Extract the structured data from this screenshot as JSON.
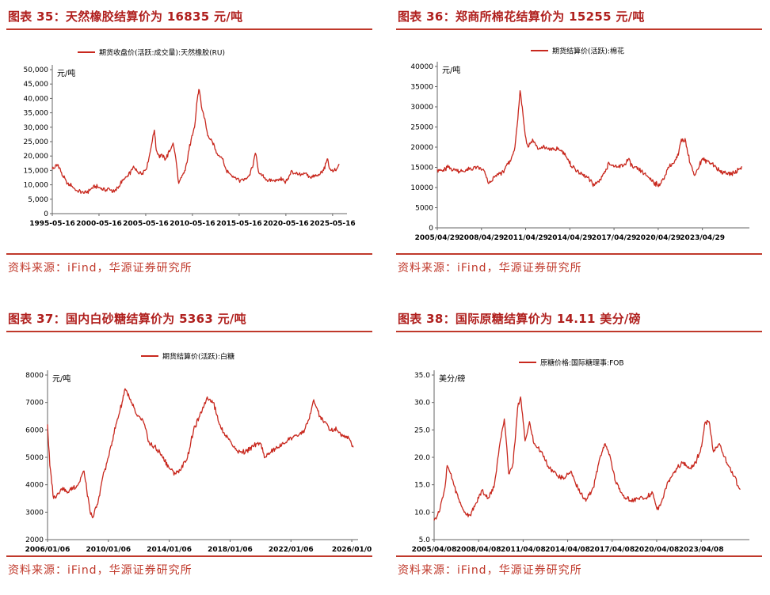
{
  "source_text": "资料来源：iFind，华源证券研究所",
  "chart_data": [
    {
      "type": "line",
      "title": "图表 35：天然橡胶结算价为 16835 元/吨",
      "unit": "元/吨",
      "legend": "期货收盘价(活跃:成交量):天然橡胶(RU)",
      "color": "#c8281e",
      "xlim": [
        1995.37,
        2026.4
      ],
      "ylim": [
        0,
        50000
      ],
      "yticks": [
        0,
        5000,
        10000,
        15000,
        20000,
        25000,
        30000,
        35000,
        40000,
        45000,
        50000
      ],
      "ytick_labels": [
        "0",
        "5,000",
        "10,000",
        "15,000",
        "20,000",
        "25,000",
        "30,000",
        "35,000",
        "40,000",
        "45,000",
        "50,000"
      ],
      "xticks": [
        1995.37,
        2000.37,
        2005.37,
        2010.37,
        2015.37,
        2020.37,
        2025.37
      ],
      "xtick_labels": [
        "1995-05-16",
        "2000-05-16",
        "2005-05-16",
        "2010-05-16",
        "2015-05-16",
        "2020-05-16",
        "2025-05-16"
      ],
      "x": [
        1995.37,
        1996.0,
        1996.5,
        1997.0,
        1997.5,
        1998.0,
        1998.5,
        1999.0,
        1999.5,
        2000.0,
        2000.5,
        2001.0,
        2001.5,
        2002.0,
        2002.5,
        2003.0,
        2003.5,
        2004.0,
        2004.5,
        2005.0,
        2005.5,
        2006.0,
        2006.3,
        2006.5,
        2006.8,
        2007.0,
        2007.5,
        2008.0,
        2008.3,
        2008.6,
        2008.9,
        2009.2,
        2009.6,
        2010.0,
        2010.3,
        2010.6,
        2010.9,
        2011.1,
        2011.4,
        2011.7,
        2012.0,
        2012.5,
        2013.0,
        2013.5,
        2014.0,
        2014.5,
        2015.0,
        2015.5,
        2016.0,
        2016.4,
        2016.8,
        2017.1,
        2017.5,
        2018.0,
        2018.5,
        2019.0,
        2019.5,
        2020.0,
        2020.3,
        2020.7,
        2021.0,
        2021.3,
        2021.7,
        2022.0,
        2022.5,
        2023.0,
        2023.5,
        2024.0,
        2024.4,
        2024.8,
        2025.0,
        2025.4,
        2025.8,
        2026.1
      ],
      "y": [
        15500,
        17000,
        13000,
        10500,
        9500,
        8000,
        7500,
        7200,
        8500,
        9500,
        9000,
        8000,
        8500,
        7500,
        9500,
        12000,
        13000,
        16000,
        14500,
        14000,
        16000,
        24000,
        29000,
        22000,
        20000,
        20500,
        19000,
        22000,
        24500,
        19000,
        10500,
        12500,
        15000,
        22000,
        27000,
        30000,
        40000,
        43000,
        36000,
        33000,
        27000,
        25000,
        21000,
        19500,
        15000,
        13500,
        12500,
        11500,
        12000,
        13000,
        16000,
        21000,
        14000,
        12500,
        11500,
        11500,
        11800,
        12000,
        10500,
        13000,
        15000,
        14000,
        13500,
        13500,
        14000,
        12500,
        13000,
        13500,
        15000,
        19000,
        16000,
        14500,
        15500,
        17000
      ]
    },
    {
      "type": "line",
      "title": "图表 36：郑商所棉花结算价为 15255 元/吨",
      "unit": "元/吨",
      "legend": "期货结算价(活跃):棉花",
      "color": "#c8281e",
      "xlim": [
        2005.33,
        2026.2
      ],
      "ylim": [
        0,
        40000
      ],
      "yticks": [
        0,
        5000,
        10000,
        15000,
        20000,
        25000,
        30000,
        35000,
        40000
      ],
      "ytick_labels": [
        "0",
        "5000",
        "10000",
        "15000",
        "20000",
        "25000",
        "30000",
        "35000",
        "40000"
      ],
      "xticks": [
        2005.33,
        2008.33,
        2011.33,
        2014.33,
        2017.33,
        2020.33,
        2023.33
      ],
      "xtick_labels": [
        "2005/04/29",
        "2008/04/29",
        "2011/04/29",
        "2014/04/29",
        "2017/04/29",
        "2020/04/29",
        "2023/04/29"
      ],
      "x": [
        2005.33,
        2005.7,
        2006.0,
        2006.5,
        2007.0,
        2007.5,
        2008.0,
        2008.5,
        2008.8,
        2009.0,
        2009.3,
        2009.8,
        2010.3,
        2010.6,
        2010.8,
        2010.95,
        2011.1,
        2011.3,
        2011.5,
        2011.8,
        2012.2,
        2012.6,
        2013.0,
        2013.5,
        2014.0,
        2014.3,
        2014.7,
        2015.0,
        2015.5,
        2016.0,
        2016.4,
        2016.7,
        2017.0,
        2017.5,
        2018.0,
        2018.3,
        2018.6,
        2019.0,
        2019.5,
        2020.0,
        2020.3,
        2020.7,
        2021.0,
        2021.4,
        2021.7,
        2021.9,
        2022.2,
        2022.5,
        2022.8,
        2023.0,
        2023.3,
        2023.7,
        2024.0,
        2024.5,
        2025.0,
        2025.5,
        2026.0
      ],
      "y": [
        14500,
        14000,
        15000,
        14500,
        14000,
        14500,
        15000,
        14200,
        11000,
        11500,
        13000,
        14000,
        16500,
        20000,
        27000,
        34000,
        30000,
        23000,
        20000,
        22000,
        19500,
        20000,
        19500,
        19500,
        18500,
        16000,
        14500,
        13500,
        12500,
        10500,
        12000,
        14000,
        16000,
        15000,
        15500,
        17000,
        15000,
        14500,
        13000,
        11500,
        10500,
        12000,
        15000,
        16000,
        18000,
        22000,
        21500,
        16000,
        13000,
        14500,
        17000,
        16500,
        16000,
        14000,
        13500,
        13500,
        15255
      ]
    },
    {
      "type": "line",
      "title": "图表 37：国内白砂糖结算价为 5363 元/吨",
      "unit": "元/吨",
      "legend": "期货结算价(活跃):白糖",
      "color": "#c8281e",
      "xlim": [
        2006.0,
        2026.1
      ],
      "ylim": [
        2000,
        8000
      ],
      "yticks": [
        2000,
        3000,
        4000,
        5000,
        6000,
        7000,
        8000
      ],
      "ytick_labels": [
        "2000",
        "3000",
        "4000",
        "5000",
        "6000",
        "7000",
        "8000"
      ],
      "xticks": [
        2006.0,
        2010.0,
        2014.0,
        2018.0,
        2022.0,
        2026.0
      ],
      "xtick_labels": [
        "2006/01/06",
        "2010/01/06",
        "2014/01/06",
        "2018/01/06",
        "2022/01/06",
        "2026/01/0"
      ],
      "x": [
        2006.0,
        2006.15,
        2006.4,
        2006.7,
        2007.0,
        2007.3,
        2007.7,
        2008.0,
        2008.4,
        2008.8,
        2008.95,
        2009.3,
        2009.6,
        2010.0,
        2010.5,
        2010.9,
        2011.1,
        2011.5,
        2011.9,
        2012.3,
        2012.7,
        2013.0,
        2013.5,
        2014.0,
        2014.4,
        2014.8,
        2015.2,
        2015.6,
        2016.0,
        2016.5,
        2016.9,
        2017.3,
        2017.7,
        2018.0,
        2018.5,
        2019.0,
        2019.5,
        2020.0,
        2020.3,
        2020.7,
        2021.0,
        2021.5,
        2022.0,
        2022.5,
        2022.9,
        2023.3,
        2023.5,
        2023.9,
        2024.2,
        2024.6,
        2025.0,
        2025.4,
        2025.8,
        2026.1
      ],
      "y": [
        6200,
        4700,
        3500,
        3700,
        3900,
        3700,
        3900,
        4000,
        4500,
        3000,
        2800,
        3300,
        4200,
        5000,
        6200,
        7000,
        7500,
        7000,
        6500,
        6300,
        5500,
        5400,
        5100,
        4600,
        4400,
        4600,
        5000,
        6000,
        6500,
        7200,
        7000,
        6200,
        5800,
        5600,
        5200,
        5200,
        5400,
        5500,
        5000,
        5200,
        5300,
        5500,
        5700,
        5800,
        6000,
        6600,
        7100,
        6500,
        6300,
        6000,
        6000,
        5800,
        5700,
        5363
      ]
    },
    {
      "type": "line",
      "title": "图表 38：国际原糖结算价为 14.11 美分/磅",
      "unit": "美分/磅",
      "legend": "原糖价格:国际糖理事:FOB",
      "color": "#c8281e",
      "xlim": [
        2005.27,
        2026.2
      ],
      "ylim": [
        5.0,
        35.0
      ],
      "yticks": [
        5.0,
        10.0,
        15.0,
        20.0,
        25.0,
        30.0,
        35.0
      ],
      "ytick_labels": [
        "5.0",
        "10.0",
        "15.0",
        "20.0",
        "25.0",
        "30.0",
        "35.0"
      ],
      "xticks": [
        2005.27,
        2008.27,
        2011.27,
        2014.27,
        2017.27,
        2020.27,
        2023.27
      ],
      "xtick_labels": [
        "2005/04/08",
        "2008/04/08",
        "2011/04/08",
        "2014/04/08",
        "2017/04/08",
        "2020/04/08",
        "2023/04/08"
      ],
      "x": [
        2005.27,
        2005.6,
        2006.0,
        2006.15,
        2006.5,
        2006.9,
        2007.3,
        2007.7,
        2008.0,
        2008.5,
        2008.9,
        2009.3,
        2009.7,
        2010.0,
        2010.3,
        2010.6,
        2010.9,
        2011.1,
        2011.4,
        2011.7,
        2012.0,
        2012.5,
        2013.0,
        2013.5,
        2014.0,
        2014.5,
        2015.0,
        2015.5,
        2016.0,
        2016.4,
        2016.8,
        2017.1,
        2017.5,
        2018.0,
        2018.5,
        2019.0,
        2019.5,
        2020.0,
        2020.3,
        2020.7,
        2021.0,
        2021.5,
        2022.0,
        2022.5,
        2022.9,
        2023.3,
        2023.5,
        2023.8,
        2024.1,
        2024.5,
        2025.0,
        2025.5,
        2025.9
      ],
      "y": [
        8.5,
        10.0,
        14.5,
        18.5,
        16.0,
        12.5,
        10.0,
        9.5,
        11.0,
        14.0,
        12.5,
        14.5,
        22.5,
        27.0,
        17.0,
        19.0,
        29.0,
        31.0,
        23.0,
        26.5,
        22.5,
        21.0,
        18.0,
        17.0,
        16.0,
        17.5,
        14.0,
        12.0,
        14.5,
        19.5,
        22.5,
        20.5,
        15.5,
        13.0,
        12.0,
        12.5,
        12.5,
        13.5,
        10.5,
        12.5,
        15.5,
        17.5,
        19.0,
        18.0,
        19.0,
        22.0,
        26.0,
        26.5,
        21.0,
        22.5,
        19.0,
        16.5,
        14.11
      ]
    }
  ]
}
